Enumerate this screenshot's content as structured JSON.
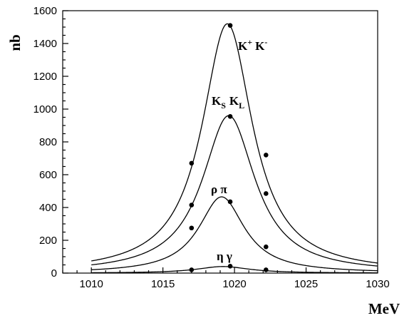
{
  "chart_data": {
    "type": "line",
    "xlabel": "MeV",
    "ylabel": "nb",
    "xlim": [
      1008,
      1030
    ],
    "ylim": [
      0,
      1600
    ],
    "x_ticks": [
      1010,
      1015,
      1020,
      1025,
      1030
    ],
    "y_ticks": [
      0,
      200,
      400,
      600,
      800,
      1000,
      1200,
      1400,
      1600
    ],
    "grid": false,
    "legend": "none",
    "series": [
      {
        "key": "kk",
        "label": "K⁺K⁻",
        "peak_x": 1019.5,
        "peak_y": 1520,
        "width": 4.3,
        "curve_x_range": [
          1010,
          1030
        ],
        "points": [
          {
            "x": 1017,
            "y": 670
          },
          {
            "x": 1019.7,
            "y": 1510
          },
          {
            "x": 1022.2,
            "y": 720
          }
        ]
      },
      {
        "key": "ksl",
        "label": "KS KL",
        "peak_x": 1019.6,
        "peak_y": 960,
        "width": 4.5,
        "curve_x_range": [
          1010,
          1030
        ],
        "points": [
          {
            "x": 1017,
            "y": 415
          },
          {
            "x": 1019.7,
            "y": 955
          },
          {
            "x": 1022.2,
            "y": 485
          }
        ]
      },
      {
        "key": "rhopi",
        "label": "ρ π",
        "peak_x": 1019.1,
        "peak_y": 465,
        "width": 3.9,
        "curve_x_range": [
          1010,
          1030
        ],
        "points": [
          {
            "x": 1017,
            "y": 275
          },
          {
            "x": 1019.7,
            "y": 435
          },
          {
            "x": 1022.2,
            "y": 160
          }
        ]
      },
      {
        "key": "etagamma",
        "label": "η γ",
        "peak_x": 1019.2,
        "peak_y": 40,
        "width": 4.5,
        "curve_x_range": [
          1010,
          1030
        ],
        "points": [
          {
            "x": 1017,
            "y": 20
          },
          {
            "x": 1019.7,
            "y": 42
          },
          {
            "x": 1022.2,
            "y": 20
          }
        ]
      }
    ]
  }
}
